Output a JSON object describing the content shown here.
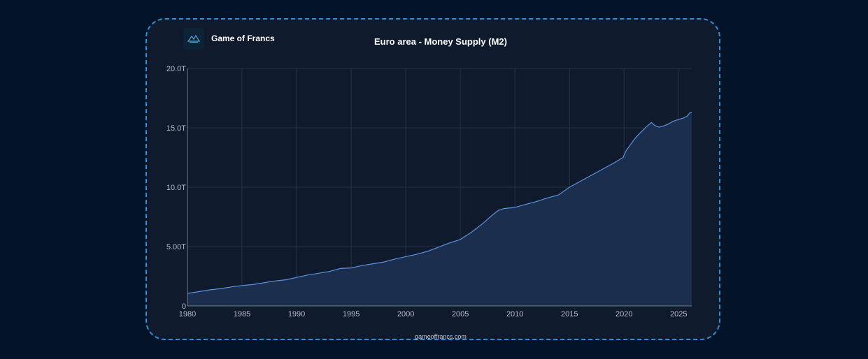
{
  "brand": {
    "name": "Game of Francs",
    "logo_icon": "mountain-icon"
  },
  "footer": {
    "site": "gameoffrancs.com"
  },
  "colors": {
    "background": "#041428",
    "card": "#0f1a2c",
    "border": "#2e8fd6",
    "line": "#5b93de",
    "fill": "#1c2f4f"
  },
  "chart_data": {
    "type": "area",
    "title": "Euro area - Money Supply (M2)",
    "xlabel": "",
    "ylabel": "",
    "xlim": [
      1980,
      2026.2
    ],
    "ylim": [
      0,
      20
    ],
    "grid": true,
    "x_ticks": [
      1980,
      1985,
      1990,
      1995,
      2000,
      2005,
      2010,
      2015,
      2020,
      2025
    ],
    "y_ticks": [
      {
        "value": 0,
        "label": "0"
      },
      {
        "value": 5,
        "label": "5.00T"
      },
      {
        "value": 10,
        "label": "10.0T"
      },
      {
        "value": 15,
        "label": "15.0T"
      },
      {
        "value": 20,
        "label": "20.0T"
      }
    ],
    "units": "trillions EUR",
    "series": [
      {
        "x": [
          1980,
          1981,
          1982,
          1983,
          1984,
          1985,
          1986,
          1987,
          1988,
          1989,
          1990,
          1991,
          1992,
          1993,
          1994,
          1995,
          1996,
          1997,
          1998,
          1999,
          2000,
          2001,
          2002,
          2003,
          2004,
          2005,
          2006,
          2007,
          2008,
          2008.5,
          2009,
          2010,
          2011,
          2012,
          2013,
          2014,
          2015,
          2016,
          2017,
          2018,
          2019,
          2019.9,
          2020.2,
          2020.6,
          2021,
          2021.5,
          2022,
          2022.5,
          2022.8,
          2023.2,
          2023.6,
          2024,
          2024.5,
          2025,
          2025.5,
          2025.8,
          2026,
          2026.2
        ],
        "values": [
          1.05,
          1.2,
          1.35,
          1.45,
          1.6,
          1.72,
          1.8,
          1.95,
          2.1,
          2.2,
          2.4,
          2.6,
          2.75,
          2.9,
          3.15,
          3.2,
          3.4,
          3.55,
          3.7,
          3.95,
          4.15,
          4.35,
          4.6,
          4.95,
          5.3,
          5.6,
          6.2,
          6.9,
          7.7,
          8.05,
          8.2,
          8.3,
          8.55,
          8.8,
          9.1,
          9.35,
          10.0,
          10.5,
          11.0,
          11.5,
          12.0,
          12.5,
          13.1,
          13.6,
          14.1,
          14.6,
          15.05,
          15.45,
          15.2,
          15.05,
          15.15,
          15.3,
          15.55,
          15.7,
          15.85,
          16.0,
          16.25,
          16.3
        ]
      }
    ]
  }
}
